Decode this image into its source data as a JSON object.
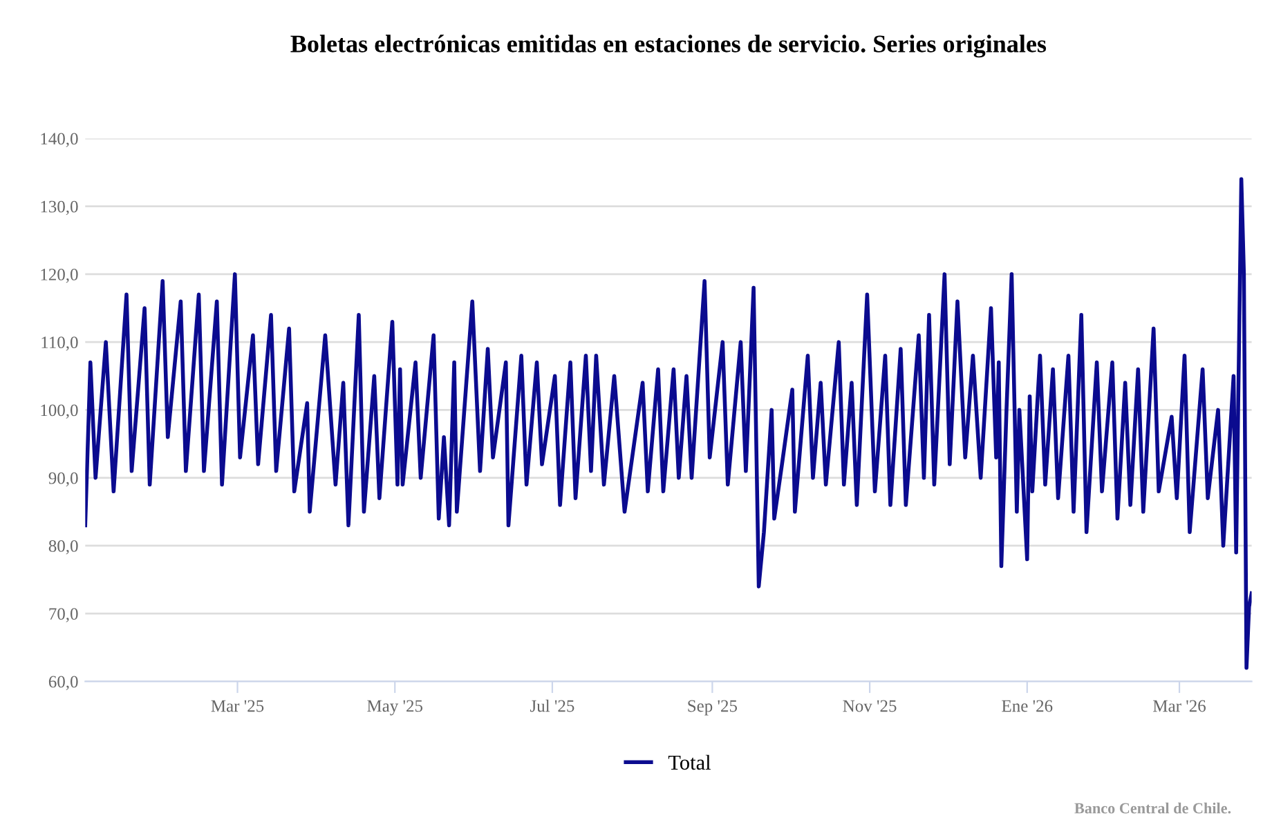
{
  "chart_data": {
    "type": "line",
    "title": "Boletas electrónicas emitidas en estaciones de servicio. Series originales",
    "x": [
      "2025-01-01",
      "2025-01-03",
      "2025-01-05",
      "2025-01-09",
      "2025-01-12",
      "2025-01-17",
      "2025-01-19",
      "2025-01-24",
      "2025-01-26",
      "2025-01-31",
      "2025-02-02",
      "2025-02-07",
      "2025-02-09",
      "2025-02-14",
      "2025-02-16",
      "2025-02-21",
      "2025-02-23",
      "2025-02-28",
      "2025-03-02",
      "2025-03-07",
      "2025-03-09",
      "2025-03-14",
      "2025-03-16",
      "2025-03-21",
      "2025-03-23",
      "2025-03-28",
      "2025-03-29",
      "2025-04-04",
      "2025-04-08",
      "2025-04-11",
      "2025-04-13",
      "2025-04-17",
      "2025-04-19",
      "2025-04-23",
      "2025-04-25",
      "2025-04-30",
      "2025-05-02",
      "2025-05-03",
      "2025-05-04",
      "2025-05-09",
      "2025-05-11",
      "2025-05-16",
      "2025-05-18",
      "2025-05-20",
      "2025-05-22",
      "2025-05-24",
      "2025-05-25",
      "2025-05-31",
      "2025-06-03",
      "2025-06-06",
      "2025-06-08",
      "2025-06-13",
      "2025-06-14",
      "2025-06-19",
      "2025-06-21",
      "2025-06-25",
      "2025-06-27",
      "2025-07-02",
      "2025-07-04",
      "2025-07-08",
      "2025-07-10",
      "2025-07-14",
      "2025-07-16",
      "2025-07-18",
      "2025-07-21",
      "2025-07-25",
      "2025-07-29",
      "2025-08-05",
      "2025-08-07",
      "2025-08-11",
      "2025-08-13",
      "2025-08-17",
      "2025-08-19",
      "2025-08-22",
      "2025-08-24",
      "2025-08-29",
      "2025-08-31",
      "2025-09-05",
      "2025-09-07",
      "2025-09-12",
      "2025-09-14",
      "2025-09-17",
      "2025-09-19",
      "2025-09-21",
      "2025-09-24",
      "2025-09-25",
      "2025-09-28",
      "2025-10-02",
      "2025-10-03",
      "2025-10-08",
      "2025-10-10",
      "2025-10-13",
      "2025-10-15",
      "2025-10-20",
      "2025-10-22",
      "2025-10-25",
      "2025-10-27",
      "2025-10-31",
      "2025-11-03",
      "2025-11-07",
      "2025-11-09",
      "2025-11-13",
      "2025-11-15",
      "2025-11-20",
      "2025-11-22",
      "2025-11-24",
      "2025-11-26",
      "2025-11-30",
      "2025-12-02",
      "2025-12-05",
      "2025-12-08",
      "2025-12-11",
      "2025-12-14",
      "2025-12-18",
      "2025-12-20",
      "2025-12-21",
      "2025-12-22",
      "2025-12-24",
      "2025-12-26",
      "2025-12-28",
      "2025-12-29",
      "2026-01-01",
      "2026-01-02",
      "2026-01-03",
      "2026-01-06",
      "2026-01-08",
      "2026-01-11",
      "2026-01-13",
      "2026-01-17",
      "2026-01-19",
      "2026-01-22",
      "2026-01-24",
      "2026-01-28",
      "2026-01-30",
      "2026-02-03",
      "2026-02-05",
      "2026-02-08",
      "2026-02-10",
      "2026-02-13",
      "2026-02-15",
      "2026-02-19",
      "2026-02-21",
      "2026-02-26",
      "2026-02-28",
      "2026-03-03",
      "2026-03-05",
      "2026-03-10",
      "2026-03-12",
      "2026-03-16",
      "2026-03-18",
      "2026-03-22",
      "2026-03-23",
      "2026-03-25",
      "2026-03-26",
      "2026-03-27",
      "2026-03-28",
      "2026-03-29"
    ],
    "series": [
      {
        "name": "Total",
        "color": "#0b0b8f",
        "values": [
          83,
          107,
          90,
          110,
          88,
          117,
          91,
          115,
          89,
          119,
          96,
          116,
          91,
          117,
          91,
          116,
          89,
          120,
          93,
          111,
          92,
          114,
          91,
          112,
          88,
          101,
          85,
          111,
          89,
          104,
          83,
          114,
          85,
          105,
          87,
          113,
          89,
          106,
          89,
          107,
          90,
          111,
          84,
          96,
          83,
          107,
          85,
          116,
          91,
          109,
          93,
          107,
          83,
          108,
          89,
          107,
          92,
          105,
          86,
          107,
          87,
          108,
          91,
          108,
          89,
          105,
          85,
          104,
          88,
          106,
          88,
          106,
          90,
          105,
          90,
          119,
          93,
          110,
          89,
          110,
          91,
          118,
          74,
          82,
          100,
          84,
          92,
          103,
          85,
          108,
          90,
          104,
          89,
          110,
          89,
          104,
          86,
          117,
          88,
          108,
          86,
          109,
          86,
          111,
          90,
          114,
          89,
          120,
          92,
          116,
          93,
          108,
          90,
          115,
          93,
          107,
          77,
          100,
          120,
          85,
          100,
          78,
          102,
          88,
          108,
          89,
          106,
          87,
          108,
          85,
          114,
          82,
          107,
          88,
          107,
          84,
          104,
          86,
          106,
          85,
          112,
          88,
          99,
          87,
          108,
          82,
          106,
          87,
          100,
          80,
          105,
          79,
          134,
          120,
          62,
          71,
          73
        ]
      }
    ],
    "xlim": [
      "2025-01-01",
      "2026-03-29"
    ],
    "xticks": [
      {
        "value": "2025-03-01",
        "label": "Mar '25"
      },
      {
        "value": "2025-05-01",
        "label": "May '25"
      },
      {
        "value": "2025-07-01",
        "label": "Jul '25"
      },
      {
        "value": "2025-09-01",
        "label": "Sep '25"
      },
      {
        "value": "2025-11-01",
        "label": "Nov '25"
      },
      {
        "value": "2026-01-01",
        "label": "Ene '26"
      },
      {
        "value": "2026-03-01",
        "label": "Mar '26"
      }
    ],
    "ylim": [
      60,
      140
    ],
    "yticks": [
      {
        "value": 60,
        "label": "60,0"
      },
      {
        "value": 70,
        "label": "70,0"
      },
      {
        "value": 80,
        "label": "80,0"
      },
      {
        "value": 90,
        "label": "90,0"
      },
      {
        "value": 100,
        "label": "100,0"
      },
      {
        "value": 110,
        "label": "110,0"
      },
      {
        "value": 120,
        "label": "120,0"
      },
      {
        "value": 130,
        "label": "130,0"
      },
      {
        "value": 140,
        "label": "140,0"
      }
    ],
    "grid": "y",
    "legend": "bottom",
    "marker": "none",
    "line_style": "solid",
    "annotations": [
      "Banco Central de Chile."
    ]
  }
}
